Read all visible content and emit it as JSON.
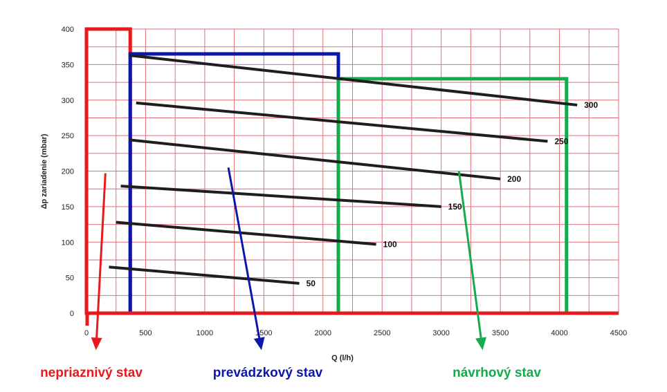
{
  "chart_data": {
    "type": "line",
    "title": "",
    "xlabel": "Q (l/h)",
    "ylabel": "Δp zariadenie (mbar)",
    "xlim": [
      0,
      4500
    ],
    "ylim": [
      0,
      400
    ],
    "x_ticks": [
      "0",
      "500",
      "1000",
      "1500",
      "2000",
      "2500",
      "3000",
      "3500",
      "4000",
      "4500"
    ],
    "y_ticks": [
      "0",
      "50",
      "100",
      "150",
      "200",
      "250",
      "300",
      "350",
      "400"
    ],
    "grid": true,
    "grid_color": "#dc6e78",
    "series": [
      {
        "name": "300",
        "x": [
          360,
          4150
        ],
        "y": [
          363,
          293
        ]
      },
      {
        "name": "250",
        "x": [
          420,
          3900
        ],
        "y": [
          296,
          242
        ]
      },
      {
        "name": "200",
        "x": [
          360,
          3500
        ],
        "y": [
          244,
          189
        ]
      },
      {
        "name": "150",
        "x": [
          290,
          3000
        ],
        "y": [
          179,
          150
        ]
      },
      {
        "name": "100",
        "x": [
          250,
          2450
        ],
        "y": [
          128,
          97
        ]
      },
      {
        "name": "50",
        "x": [
          190,
          1800
        ],
        "y": [
          65,
          42
        ]
      }
    ],
    "curve_color": "#1e1e1e",
    "zones": [
      {
        "label": "nepriaznivý stav",
        "color": "#e8181c",
        "x": [
          0,
          370
        ],
        "y": [
          0,
          400
        ],
        "arrow": {
          "from": [
            160,
            197
          ],
          "to": [
            80,
            -52
          ]
        },
        "label_x": 550
      },
      {
        "label": "prevádzkový stav",
        "color": "#0a17a8",
        "x": [
          370,
          2130
        ],
        "y": [
          0,
          365
        ],
        "arrow": {
          "from": [
            1200,
            205
          ],
          "to": [
            1480,
            -52
          ]
        },
        "label_x": 1770
      },
      {
        "label": "návrhový stav",
        "color": "#14aa4e",
        "x": [
          2130,
          4060
        ],
        "y": [
          0,
          330
        ],
        "arrow": {
          "from": [
            3150,
            200
          ],
          "to": [
            3350,
            -52
          ]
        },
        "label_x": 3500
      }
    ]
  }
}
